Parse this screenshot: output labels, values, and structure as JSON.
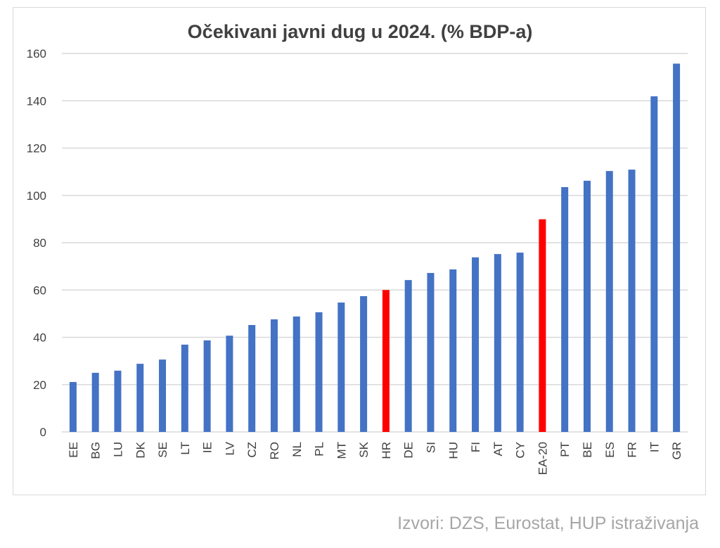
{
  "chart_data": {
    "type": "bar",
    "title": "Očekivani javni dug u 2024. (% BDP-a)",
    "xlabel": "",
    "ylabel": "",
    "ylim": [
      0,
      160
    ],
    "yticks": [
      0,
      20,
      40,
      60,
      80,
      100,
      120,
      140,
      160
    ],
    "grid": true,
    "categories": [
      "EE",
      "BG",
      "LU",
      "DK",
      "SE",
      "LT",
      "IE",
      "LV",
      "CZ",
      "RO",
      "NL",
      "PL",
      "MT",
      "SK",
      "HR",
      "DE",
      "SI",
      "HU",
      "FI",
      "AT",
      "CY",
      "EA-20",
      "PT",
      "BE",
      "ES",
      "FR",
      "IT",
      "GR"
    ],
    "values": [
      21.1,
      25.0,
      25.9,
      28.8,
      30.6,
      36.9,
      38.7,
      40.7,
      45.2,
      47.6,
      48.8,
      50.6,
      54.7,
      57.4,
      60.0,
      64.2,
      67.2,
      68.7,
      73.8,
      75.2,
      75.8,
      89.9,
      103.5,
      106.2,
      110.3,
      110.9,
      141.9,
      155.7
    ],
    "colors": {
      "default": "#4472c4",
      "highlight": "#ff0000"
    },
    "highlighted": [
      "HR",
      "EA-20"
    ]
  },
  "footer": {
    "source": "Izvori: DZS, Eurostat, HUP istraživanja"
  }
}
